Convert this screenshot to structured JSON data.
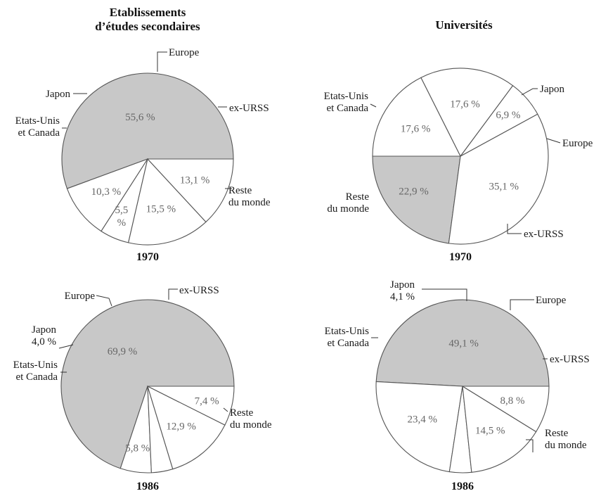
{
  "titles": {
    "left": "Etablissements\nd’études secondaires",
    "right": "Universités"
  },
  "colors": {
    "rest_of_world": "#c8c8c8",
    "slice": "#ffffff",
    "outline": "#555555"
  },
  "chart_data": [
    {
      "type": "pie",
      "group": "Etablissements d’études secondaires",
      "year": "1970",
      "slices": [
        {
          "label": "Reste\ndu monde",
          "value": 55.6,
          "value_label": "55,6 %",
          "shaded": true
        },
        {
          "label": "Etats-Unis\net Canada",
          "value": 10.3,
          "value_label": "10,3 %"
        },
        {
          "label": "Japon",
          "value": 5.5,
          "value_label": "5,5\n%"
        },
        {
          "label": "Europe",
          "value": 15.5,
          "value_label": "15,5 %"
        },
        {
          "label": "ex-URSS",
          "value": 13.1,
          "value_label": "13,1 %"
        }
      ]
    },
    {
      "type": "pie",
      "group": "Universités",
      "year": "1970",
      "slices": [
        {
          "label": "Reste\ndu monde",
          "value": 22.9,
          "value_label": "22,9 %",
          "shaded": true
        },
        {
          "label": "Etats-Unis\net Canada",
          "value": 35.1,
          "value_label": "35,1 %"
        },
        {
          "label": "Japon",
          "value": 6.9,
          "value_label": "6,9 %"
        },
        {
          "label": "Europe",
          "value": 17.6,
          "value_label": "17,6 %"
        },
        {
          "label": "ex-URSS",
          "value": 17.6,
          "value_label": "17,6 %"
        }
      ]
    },
    {
      "type": "pie",
      "group": "Etablissements d’études secondaires",
      "year": "1986",
      "slices": [
        {
          "label": "Reste\ndu monde",
          "value": 69.9,
          "value_label": "69,9 %",
          "shaded": true
        },
        {
          "label": "Etats-Unis\net Canada",
          "value": 5.8,
          "value_label": "5,8 %"
        },
        {
          "label": "Japon\n4,0 %",
          "value": 4.0,
          "value_label": ""
        },
        {
          "label": "Europe",
          "value": 12.9,
          "value_label": "12,9 %"
        },
        {
          "label": "ex-URSS",
          "value": 7.4,
          "value_label": "7,4 %"
        }
      ]
    },
    {
      "type": "pie",
      "group": "Universités",
      "year": "1986",
      "slices": [
        {
          "label": "Reste\ndu monde",
          "value": 49.1,
          "value_label": "49,1 %",
          "shaded": true
        },
        {
          "label": "Etats-Unis\net Canada",
          "value": 23.4,
          "value_label": "23,4 %"
        },
        {
          "label": "Japon\n4,1 %",
          "value": 4.1,
          "value_label": ""
        },
        {
          "label": "Europe",
          "value": 14.5,
          "value_label": "14,5 %"
        },
        {
          "label": "ex-URSS",
          "value": 8.8,
          "value_label": "8,8 %"
        }
      ]
    }
  ]
}
